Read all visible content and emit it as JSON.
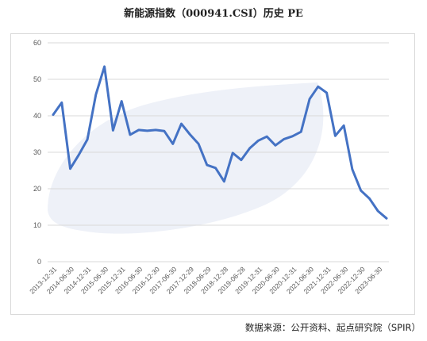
{
  "title": "新能源指数（000941.CSI）历史 PE",
  "source": "数据来源：公开资料、起点研究院（SPIR）",
  "colors": {
    "line": "#4472c4",
    "grid": "#d9d9d9",
    "axis_text": "#595959",
    "watermark": "#eef1f8"
  },
  "chart_data": {
    "type": "line",
    "title": "新能源指数（000941.CSI）历史 PE",
    "xlabel": "",
    "ylabel": "",
    "ylim": [
      0,
      60
    ],
    "yticks": [
      0,
      10,
      20,
      30,
      40,
      50,
      60
    ],
    "grid": "horizontal",
    "legend": "none",
    "xticks": [
      "2013-12-31",
      "2014-06-30",
      "2014-12-31",
      "2015-06-30",
      "2015-12-31",
      "2016-06-30",
      "2016-12-30",
      "2017-06-30",
      "2017-12-29",
      "2018-06-29",
      "2018-12-28",
      "2019-06-28",
      "2019-12-31",
      "2020-06-30",
      "2020-12-31",
      "2021-06-30",
      "2021-12-31",
      "2022-06-30",
      "2022-12-30",
      "2023-06-30"
    ],
    "series": [
      {
        "values": [
          40.3,
          43.6,
          25.5,
          29.3,
          33.5,
          45.8,
          53.5,
          36.0,
          44.0,
          34.8,
          36.1,
          35.9,
          36.1,
          35.8,
          32.3,
          37.8,
          34.9,
          32.3,
          26.5,
          25.7,
          22.0,
          29.8,
          27.9,
          31.1,
          33.2,
          34.3,
          31.9,
          33.6,
          34.4,
          35.6,
          44.6,
          48.0,
          46.3,
          34.5,
          37.3,
          25.3,
          19.5,
          17.3,
          13.9,
          11.9
        ]
      }
    ]
  }
}
